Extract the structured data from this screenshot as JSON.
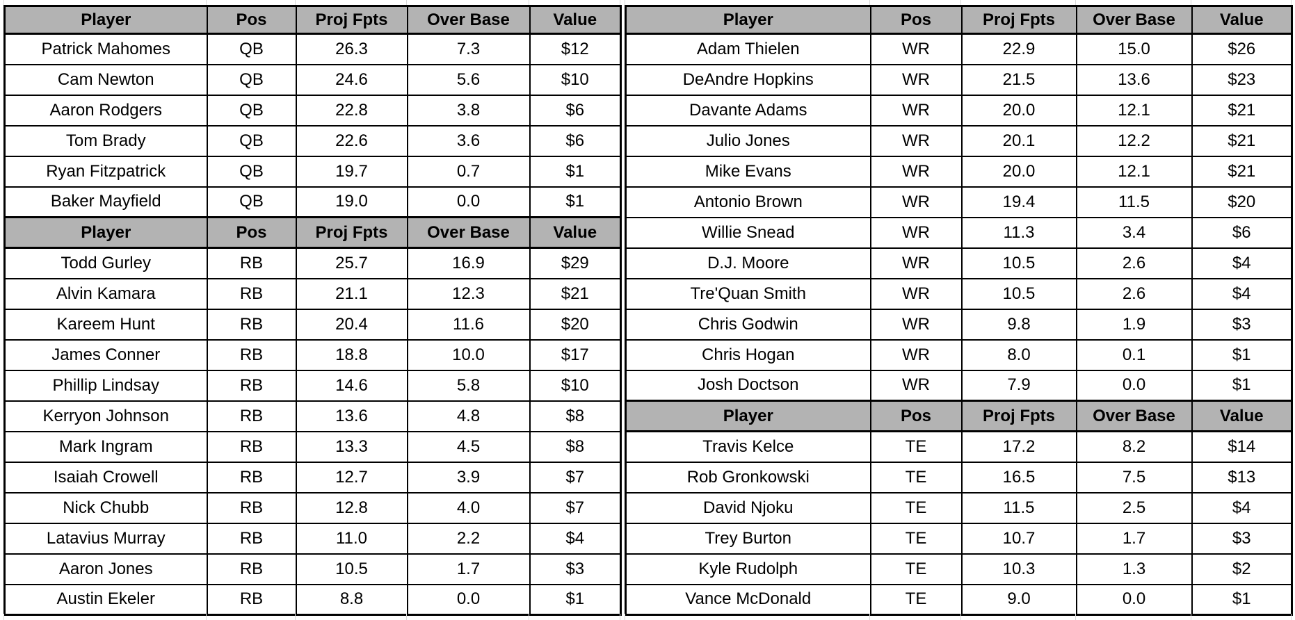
{
  "colors": {
    "background": "#ffffff",
    "header_bg": "#b3b3b3",
    "border": "#000000",
    "text": "#000000",
    "margin_gridline": "#d9d9d9"
  },
  "table_columns": [
    "Player",
    "Pos",
    "Proj Fpts",
    "Over Base",
    "Value"
  ],
  "chart_data": [
    {
      "type": "table",
      "name": "left-table-qb-rb",
      "columns": [
        "Player",
        "Pos",
        "Proj Fpts",
        "Over Base",
        "Value"
      ],
      "sections": [
        {
          "position_group": "QB",
          "rows": [
            [
              "Patrick Mahomes",
              "QB",
              "26.3",
              "7.3",
              "$12"
            ],
            [
              "Cam Newton",
              "QB",
              "24.6",
              "5.6",
              "$10"
            ],
            [
              "Aaron Rodgers",
              "QB",
              "22.8",
              "3.8",
              "$6"
            ],
            [
              "Tom Brady",
              "QB",
              "22.6",
              "3.6",
              "$6"
            ],
            [
              "Ryan Fitzpatrick",
              "QB",
              "19.7",
              "0.7",
              "$1"
            ],
            [
              "Baker Mayfield",
              "QB",
              "19.0",
              "0.0",
              "$1"
            ]
          ]
        },
        {
          "position_group": "RB",
          "rows": [
            [
              "Todd Gurley",
              "RB",
              "25.7",
              "16.9",
              "$29"
            ],
            [
              "Alvin Kamara",
              "RB",
              "21.1",
              "12.3",
              "$21"
            ],
            [
              "Kareem Hunt",
              "RB",
              "20.4",
              "11.6",
              "$20"
            ],
            [
              "James Conner",
              "RB",
              "18.8",
              "10.0",
              "$17"
            ],
            [
              "Phillip Lindsay",
              "RB",
              "14.6",
              "5.8",
              "$10"
            ],
            [
              "Kerryon Johnson",
              "RB",
              "13.6",
              "4.8",
              "$8"
            ],
            [
              "Mark Ingram",
              "RB",
              "13.3",
              "4.5",
              "$8"
            ],
            [
              "Isaiah Crowell",
              "RB",
              "12.7",
              "3.9",
              "$7"
            ],
            [
              "Nick Chubb",
              "RB",
              "12.8",
              "4.0",
              "$7"
            ],
            [
              "Latavius Murray",
              "RB",
              "11.0",
              "2.2",
              "$4"
            ],
            [
              "Aaron Jones",
              "RB",
              "10.5",
              "1.7",
              "$3"
            ],
            [
              "Austin Ekeler",
              "RB",
              "8.8",
              "0.0",
              "$1"
            ]
          ]
        }
      ]
    },
    {
      "type": "table",
      "name": "right-table-wr-te",
      "columns": [
        "Player",
        "Pos",
        "Proj Fpts",
        "Over Base",
        "Value"
      ],
      "sections": [
        {
          "position_group": "WR",
          "rows": [
            [
              "Adam Thielen",
              "WR",
              "22.9",
              "15.0",
              "$26"
            ],
            [
              "DeAndre Hopkins",
              "WR",
              "21.5",
              "13.6",
              "$23"
            ],
            [
              "Davante Adams",
              "WR",
              "20.0",
              "12.1",
              "$21"
            ],
            [
              "Julio Jones",
              "WR",
              "20.1",
              "12.2",
              "$21"
            ],
            [
              "Mike Evans",
              "WR",
              "20.0",
              "12.1",
              "$21"
            ],
            [
              "Antonio Brown",
              "WR",
              "19.4",
              "11.5",
              "$20"
            ],
            [
              "Willie Snead",
              "WR",
              "11.3",
              "3.4",
              "$6"
            ],
            [
              "D.J. Moore",
              "WR",
              "10.5",
              "2.6",
              "$4"
            ],
            [
              "Tre'Quan Smith",
              "WR",
              "10.5",
              "2.6",
              "$4"
            ],
            [
              "Chris Godwin",
              "WR",
              "9.8",
              "1.9",
              "$3"
            ],
            [
              "Chris Hogan",
              "WR",
              "8.0",
              "0.1",
              "$1"
            ],
            [
              "Josh Doctson",
              "WR",
              "7.9",
              "0.0",
              "$1"
            ]
          ]
        },
        {
          "position_group": "TE",
          "rows": [
            [
              "Travis Kelce",
              "TE",
              "17.2",
              "8.2",
              "$14"
            ],
            [
              "Rob Gronkowski",
              "TE",
              "16.5",
              "7.5",
              "$13"
            ],
            [
              "David Njoku",
              "TE",
              "11.5",
              "2.5",
              "$4"
            ],
            [
              "Trey Burton",
              "TE",
              "10.7",
              "1.7",
              "$3"
            ],
            [
              "Kyle Rudolph",
              "TE",
              "10.3",
              "1.3",
              "$2"
            ],
            [
              "Vance McDonald",
              "TE",
              "9.0",
              "0.0",
              "$1"
            ]
          ]
        }
      ]
    }
  ]
}
